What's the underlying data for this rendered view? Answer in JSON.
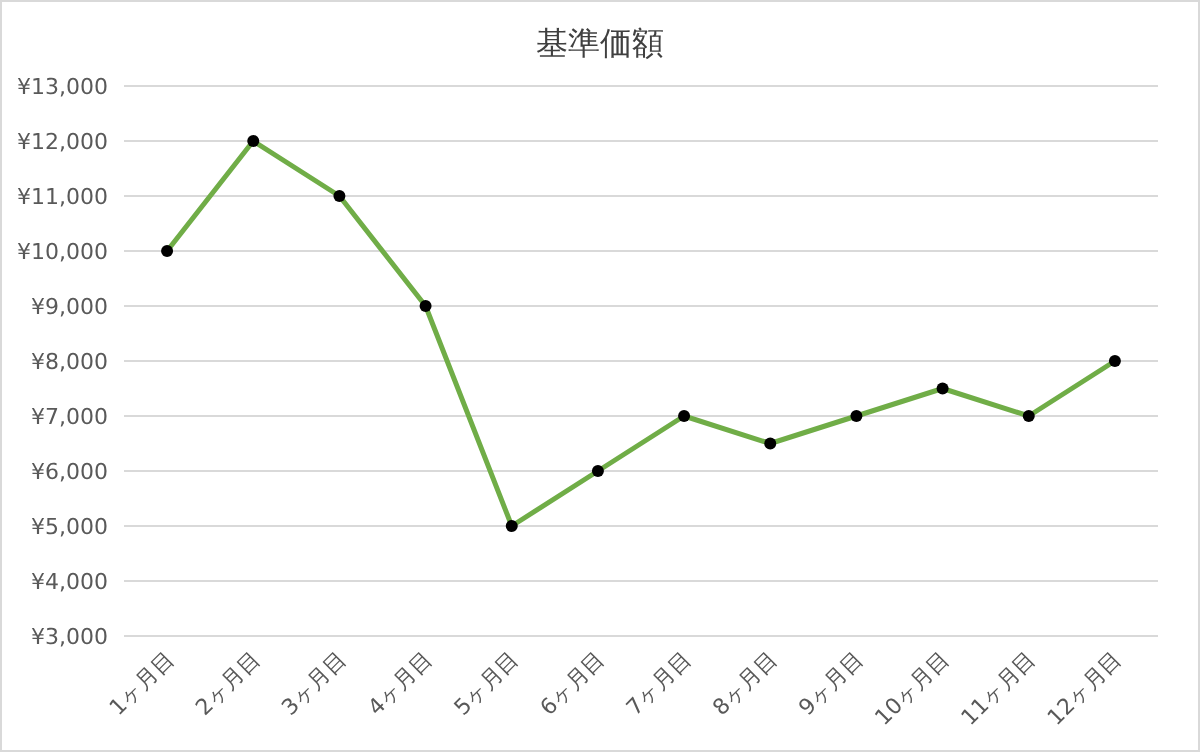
{
  "chart_data": {
    "type": "line",
    "title": "基準価額",
    "categories": [
      "1ヶ月目",
      "2ヶ月目",
      "3ヶ月目",
      "4ヶ月目",
      "5ヶ月目",
      "6ヶ月目",
      "7ヶ月目",
      "8ヶ月目",
      "9ヶ月目",
      "10ヶ月目",
      "11ヶ月目",
      "12ヶ月目"
    ],
    "series": [
      {
        "color": "#70ad47",
        "values": [
          10000,
          12000,
          11000,
          9000,
          5000,
          6000,
          7000,
          6500,
          7000,
          7500,
          7000,
          8000
        ]
      }
    ],
    "ylim": [
      3000,
      13000
    ],
    "yticks": [
      {
        "value": 3000,
        "label": "¥3,000"
      },
      {
        "value": 4000,
        "label": "¥4,000"
      },
      {
        "value": 5000,
        "label": "¥5,000"
      },
      {
        "value": 6000,
        "label": "¥6,000"
      },
      {
        "value": 7000,
        "label": "¥7,000"
      },
      {
        "value": 8000,
        "label": "¥8,000"
      },
      {
        "value": 9000,
        "label": "¥9,000"
      },
      {
        "value": 10000,
        "label": "¥10,000"
      },
      {
        "value": 11000,
        "label": "¥11,000"
      },
      {
        "value": 12000,
        "label": "¥12,000"
      },
      {
        "value": 13000,
        "label": "¥13,000"
      }
    ],
    "grid": "y",
    "marker": "circle",
    "line_style": "solid"
  }
}
